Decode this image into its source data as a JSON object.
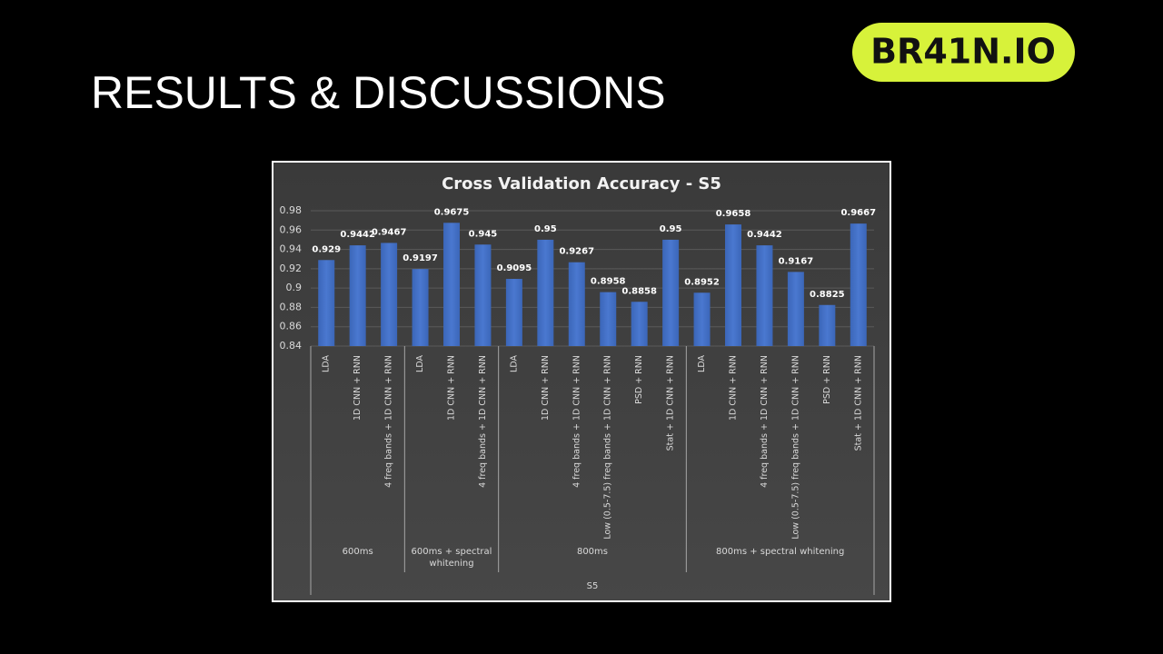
{
  "title": "RESULTS & DISCUSSIONS",
  "logo": "BR41N.IO",
  "chart_data": {
    "type": "bar",
    "title": "Cross Validation Accuracy - S5",
    "color": "#4472c4",
    "ylim": [
      0.84,
      0.98
    ],
    "yticks": [
      0.84,
      0.86,
      0.88,
      0.9,
      0.92,
      0.94,
      0.96,
      0.98
    ],
    "grid": true,
    "super_group": "S5",
    "groups": [
      {
        "label": "600ms",
        "categories": [
          "LDA",
          "1D CNN + RNN",
          "4 freq bands + 1D CNN + RNN"
        ],
        "values": [
          0.929,
          0.9442,
          0.9467
        ]
      },
      {
        "label": "600ms + spectral whitening",
        "categories": [
          "LDA",
          "1D CNN + RNN",
          "4 freq bands + 1D CNN + RNN"
        ],
        "values": [
          0.9197,
          0.9675,
          0.945
        ]
      },
      {
        "label": "800ms",
        "categories": [
          "LDA",
          "1D CNN + RNN",
          "4 freq bands + 1D CNN + RNN",
          "Low (0.5-7.5) freq bands + 1D CNN + RNN",
          "PSD + RNN",
          "Stat + 1D CNN + RNN"
        ],
        "values": [
          0.9095,
          0.95,
          0.9267,
          0.8958,
          0.8858,
          0.95
        ]
      },
      {
        "label": "800ms + spectral whitening",
        "categories": [
          "LDA",
          "1D CNN + RNN",
          "4 freq bands + 1D CNN + RNN",
          "Low (0.5-7.5) freq bands + 1D CNN + RNN",
          "PSD + RNN",
          "Stat + 1D CNN + RNN"
        ],
        "values": [
          0.8952,
          0.9658,
          0.9442,
          0.9167,
          0.8825,
          0.9667
        ]
      }
    ]
  }
}
